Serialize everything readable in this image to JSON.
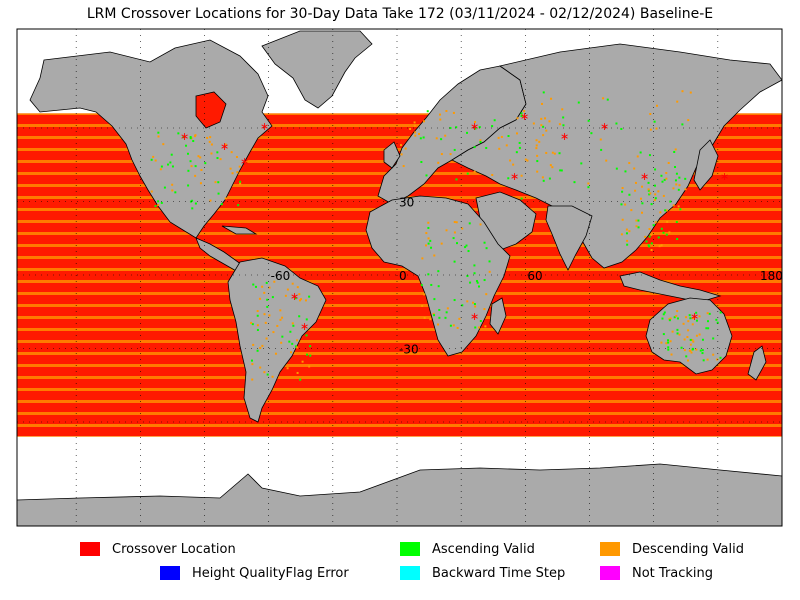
{
  "title": "LRM Crossover Locations for 30-Day Data Take 172 (03/11/2024 - 02/12/2024) Baseline-E",
  "map": {
    "ocean_color": "#ffffff",
    "land_color": "#aaaaaa",
    "coverage_color": "#ff1a00",
    "stripe_color": "#ff9a00",
    "ascending_color": "#00ff00",
    "coverage_lat_range": [
      -66,
      66
    ],
    "graticule_labels": [
      {
        "id": "lon-neg60",
        "text": "-60",
        "lon": -60,
        "lat": 0
      },
      {
        "id": "lon-0",
        "text": "0",
        "lon": 0,
        "lat": 0
      },
      {
        "id": "lon-60",
        "text": "60",
        "lon": 60,
        "lat": 0
      },
      {
        "id": "lon-180",
        "text": "180",
        "lon": 180,
        "lat": 0
      },
      {
        "id": "lat-30",
        "text": "30",
        "lon": 0,
        "lat": 30
      },
      {
        "id": "lat-neg30",
        "text": "-30",
        "lon": 0,
        "lat": -30
      }
    ]
  },
  "legend": [
    {
      "id": "crossover-location",
      "label": "Crossover Location",
      "color": "#ff0000"
    },
    {
      "id": "ascending-valid",
      "label": "Ascending Valid",
      "color": "#00ff00"
    },
    {
      "id": "descending-valid",
      "label": "Descending Valid",
      "color": "#ff9900"
    },
    {
      "id": "height-qualityflag-error",
      "label": "Height QualityFlag Error",
      "color": "#0000ff"
    },
    {
      "id": "backward-time-step",
      "label": "Backward Time Step",
      "color": "#00ffff"
    },
    {
      "id": "not-tracking",
      "label": "Not Tracking",
      "color": "#ff00ff"
    }
  ]
}
